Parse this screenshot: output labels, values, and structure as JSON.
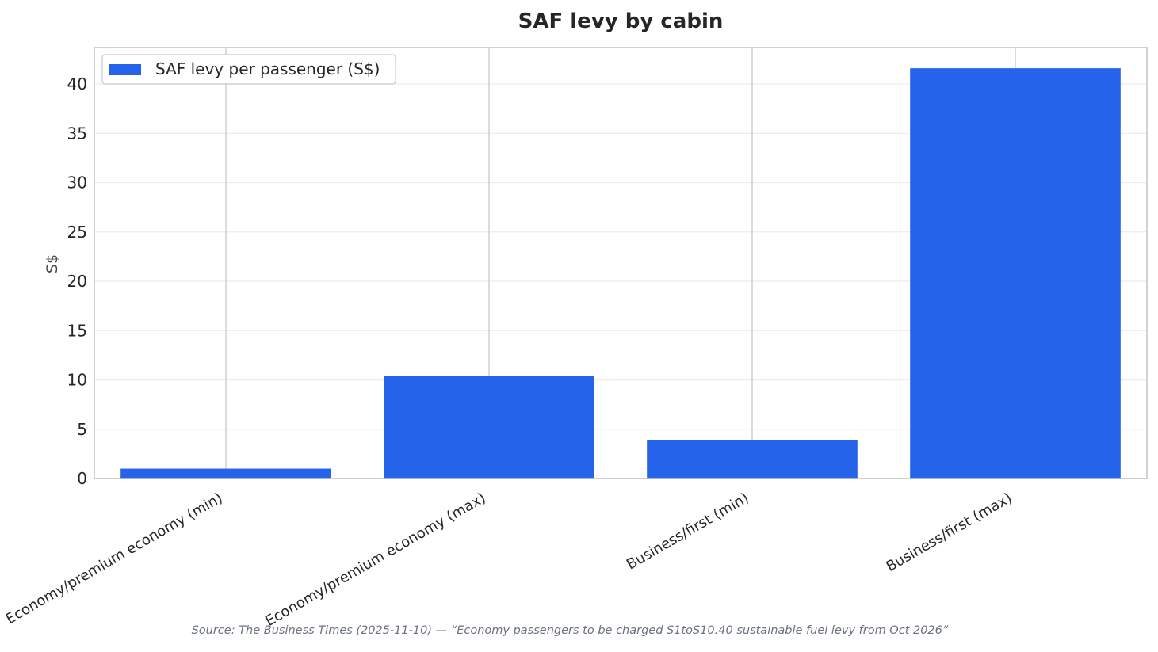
{
  "chart_data": {
    "type": "bar",
    "title": "SAF levy by cabin",
    "ylabel": "S$",
    "xlabel": "",
    "categories": [
      "Economy/premium economy (min)",
      "Economy/premium economy (max)",
      "Business/first (min)",
      "Business/first (max)"
    ],
    "series": [
      {
        "name": "SAF levy per passenger (S$)",
        "values": [
          1.0,
          10.4,
          3.9,
          41.6
        ],
        "color": "#2563eb"
      }
    ],
    "ylim": [
      0,
      43.7
    ],
    "yticks": [
      0,
      5,
      10,
      15,
      20,
      25,
      30,
      35,
      40
    ],
    "grid": true,
    "legend_position": "upper-left",
    "source": "Source: The Business Times (2025-11-10) — “Economy passengers to be charged S1toS10.40 sustainable fuel levy from Oct 2026”"
  }
}
